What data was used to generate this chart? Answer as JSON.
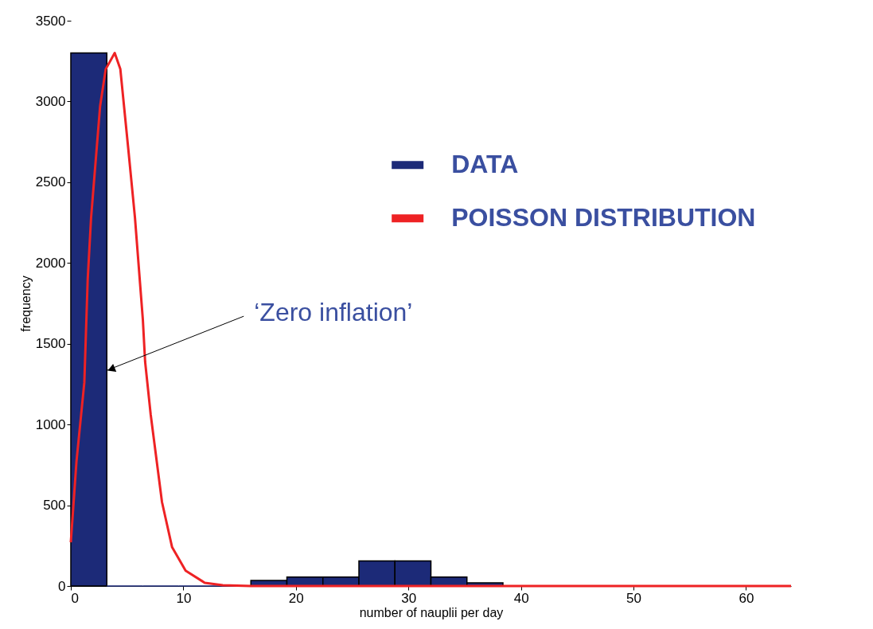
{
  "chart_data": {
    "type": "histogram",
    "xlabel": "number of nauplii per day",
    "ylabel": "frequency",
    "bins": [
      0,
      3.2,
      6.4,
      9.6,
      12.8,
      16,
      19.2,
      22.4,
      25.6,
      28.8,
      32,
      35.2,
      38.4
    ],
    "series": [
      {
        "name": "DATA",
        "color": "#1c2a78",
        "values": [
          3300,
          0,
          0,
          0,
          0,
          35,
          55,
          55,
          155,
          155,
          55,
          20
        ]
      },
      {
        "name": "POISSON DISTRIBUTION",
        "type": "line",
        "color": "#ee2224",
        "x": [
          0,
          0.5,
          1.2,
          1.5,
          1.8,
          2.6,
          3.1,
          3.9,
          4.4,
          5.1,
          5.7,
          6.4,
          6.6,
          7.1,
          8.1,
          9,
          10.2,
          11.9,
          13.5,
          16,
          64
        ],
        "values": [
          270,
          770,
          1260,
          1900,
          2280,
          2970,
          3200,
          3300,
          3200,
          2710,
          2280,
          1650,
          1390,
          1060,
          520,
          240,
          95,
          20,
          5,
          0,
          0
        ]
      }
    ],
    "xlim": [
      0,
      64
    ],
    "xticks": [
      0,
      10,
      20,
      30,
      40,
      50,
      60
    ],
    "ylim": [
      0,
      3500
    ],
    "yticks": [
      0,
      500,
      1000,
      1500,
      2000,
      2500,
      3000,
      3500
    ],
    "annotations": [
      {
        "text": "‘Zero inflation’",
        "x": 3.2,
        "y": 1335
      }
    ],
    "legend": "top right",
    "grid": false
  }
}
